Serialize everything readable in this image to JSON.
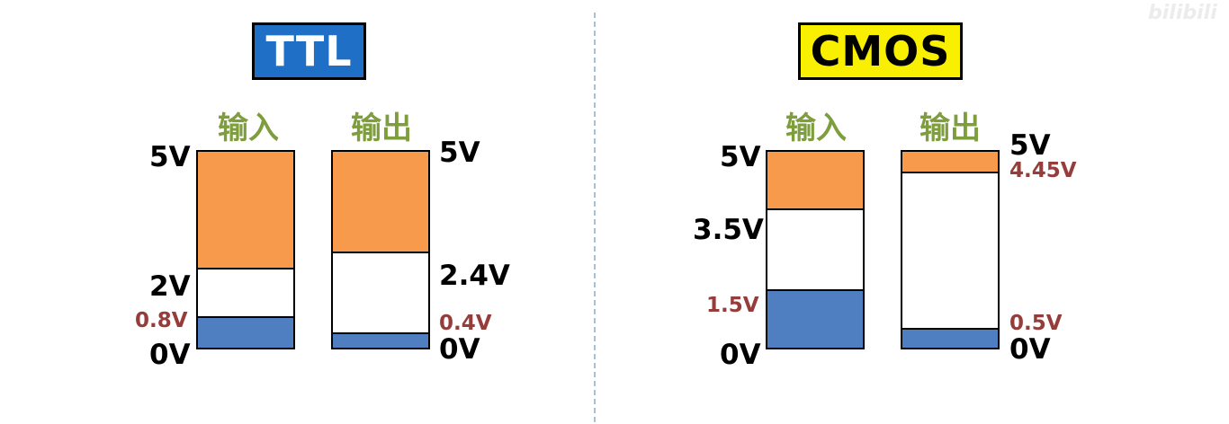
{
  "watermark": "bilibili",
  "ttl": {
    "title": "TTL",
    "input": {
      "header": "输入",
      "top": "5V",
      "high_min": "2V",
      "low_max": "0.8V",
      "bottom": "0V",
      "high_threshold": 2,
      "low_threshold": 0.8,
      "max": 5
    },
    "output": {
      "header": "输出",
      "top": "5V",
      "high_min": "2.4V",
      "low_max": "0.4V",
      "bottom": "0V",
      "high_threshold": 2.4,
      "low_threshold": 0.4,
      "max": 5
    }
  },
  "cmos": {
    "title": "CMOS",
    "input": {
      "header": "输入",
      "top": "5V",
      "high_min": "3.5V",
      "low_max": "1.5V",
      "bottom": "0V",
      "high_threshold": 3.5,
      "low_threshold": 1.5,
      "max": 5
    },
    "output": {
      "header": "输出",
      "top": "5V",
      "high_min": "4.45V",
      "low_max": "0.5V",
      "bottom": "0V",
      "high_threshold": 4.45,
      "low_threshold": 0.5,
      "max": 5
    }
  },
  "colors": {
    "high": "#f79a4b",
    "low": "#4f7fc1",
    "ttl_title_bg": "#1f6fc6",
    "cmos_title_bg": "#f8f000",
    "header_text": "#7e9e3e",
    "threshold_text": "#953d3a"
  }
}
